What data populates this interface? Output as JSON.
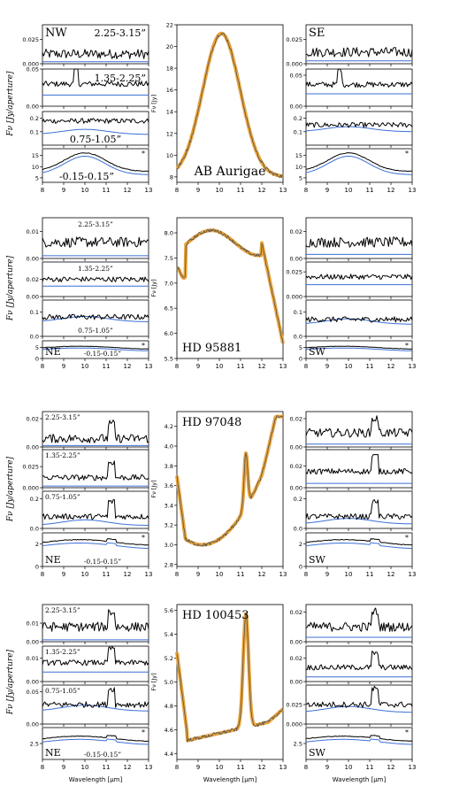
{
  "figure": {
    "xlabel": "Wavelength [μm]",
    "left_ylabel": "Fν [Jy/aperture]",
    "center_ylabel": "Fν [Jy]",
    "x_ticks": [
      "8",
      "9",
      "10",
      "11",
      "12",
      "13"
    ],
    "colors": {
      "data": "#000000",
      "model": "#3b6fd6",
      "fit": "#e8a33a",
      "fit_line": "#555555"
    }
  },
  "chart_data": [
    {
      "type": "line",
      "object": "AB Aurigae",
      "rows": [
        {
          "name": "row1",
          "left": {
            "label": "NW",
            "range": "2.25-3.15”",
            "ylim": [
              0,
              0.04
            ],
            "yticks": [
              "0.000",
              "0.025"
            ],
            "level": 0.01,
            "baseline": 0.002,
            "noise": 0.003
          },
          "center": {
            "label": "AB Aurigae",
            "ylim": [
              7.5,
              22
            ],
            "yticks": [
              "8",
              "10",
              "12",
              "14",
              "16",
              "18",
              "20",
              "22"
            ]
          },
          "right": {
            "label": "SE",
            "ylim": [
              0,
              0.04
            ],
            "yticks": [
              "0.000",
              "0.025"
            ],
            "level": 0.012,
            "baseline": 0.003,
            "noise": 0.003
          }
        },
        {
          "name": "row2",
          "left": {
            "range": "1.35-2.25”",
            "ylim": [
              0,
              0.05
            ],
            "yticks": [
              "0.00",
              "0.05"
            ],
            "level": 0.03,
            "baseline": 0.015
          },
          "right": {
            "ylim": [
              0,
              0.06
            ],
            "yticks": [
              "0.00",
              "0.05"
            ],
            "level": 0.035,
            "baseline": 0.02
          }
        },
        {
          "name": "row3",
          "left": {
            "range": "0.75-1.05”",
            "ylim": [
              0,
              0.25
            ],
            "yticks": [
              "0.1",
              "0.2"
            ],
            "level": 0.18,
            "baseline": 0.08
          },
          "right": {
            "ylim": [
              0,
              0.25
            ],
            "yticks": [
              "0.1",
              "0.2"
            ],
            "level": 0.15,
            "baseline": 0.1
          }
        },
        {
          "name": "row4",
          "left": {
            "range": "-0.15-0.15”",
            "ylim": [
              3,
              18
            ],
            "yticks": [
              "5",
              "10",
              "15"
            ],
            "level": 14,
            "baseline": 13,
            "star": "*"
          },
          "right": {
            "ylim": [
              3,
              18
            ],
            "yticks": [
              "5",
              "10",
              "15"
            ],
            "level": 14,
            "baseline": 13,
            "star": "*"
          }
        }
      ]
    },
    {
      "type": "line",
      "object": "HD 95881",
      "rows": [
        {
          "name": "row1",
          "left": {
            "range": "2.25-3.15”",
            "ylim": [
              0,
              0.015
            ],
            "yticks": [
              "0.00",
              "0.01"
            ],
            "level": 0.006,
            "baseline": 0.001
          },
          "center": {
            "label": "HD 95881",
            "ylim": [
              5.5,
              8.3
            ],
            "yticks": [
              "5.5",
              "6.0",
              "6.5",
              "7.0",
              "7.5",
              "8.0"
            ]
          },
          "right": {
            "ylim": [
              0,
              0.03
            ],
            "yticks": [
              "0.00",
              "0.02"
            ],
            "level": 0.012,
            "baseline": 0.003
          }
        },
        {
          "name": "row2",
          "left": {
            "range": "1.35-2.25”",
            "ylim": [
              0,
              0.04
            ],
            "yticks": [
              "0.00",
              "0.02"
            ],
            "level": 0.02,
            "baseline": 0.012
          },
          "right": {
            "ylim": [
              0,
              0.035
            ],
            "yticks": [
              "0.000",
              "0.025"
            ],
            "level": 0.02,
            "baseline": 0.012
          }
        },
        {
          "name": "row3",
          "left": {
            "range": "0.75-1.05”",
            "ylim": [
              0,
              0.15
            ],
            "yticks": [
              "0.0",
              "0.1"
            ],
            "level": 0.08,
            "baseline": 0.06
          },
          "right": {
            "ylim": [
              0,
              0.15
            ],
            "yticks": [
              "0.0",
              "0.1"
            ],
            "level": 0.07,
            "baseline": 0.05
          }
        },
        {
          "name": "row4",
          "left": {
            "label": "NE",
            "range": "-0.15-0.15”",
            "ylim": [
              0,
              8
            ],
            "yticks": [
              "0",
              "5"
            ],
            "level": 5,
            "baseline": 4.5,
            "star": "*"
          },
          "right": {
            "label": "SW",
            "ylim": [
              0,
              8
            ],
            "yticks": [
              "0",
              "5"
            ],
            "level": 5,
            "baseline": 4.5,
            "star": "*"
          }
        }
      ]
    },
    {
      "type": "line",
      "object": "HD 97048",
      "rows": [
        {
          "name": "row1",
          "left": {
            "range": "2.25-3.15”",
            "ylim": [
              0,
              0.025
            ],
            "yticks": [
              "0.00",
              "0.02"
            ],
            "level": 0.006,
            "baseline": 0.001
          },
          "center": {
            "label": "HD 97048",
            "ylim": [
              2.78,
              4.35
            ],
            "yticks": [
              "2.8",
              "3.0",
              "3.2",
              "3.4",
              "3.6",
              "3.8",
              "4.0",
              "4.2"
            ]
          },
          "right": {
            "ylim": [
              0,
              0.025
            ],
            "yticks": [
              "0.00",
              "0.02"
            ],
            "level": 0.01,
            "baseline": 0.002
          }
        },
        {
          "name": "row2",
          "left": {
            "range": "1.35-2.25”",
            "ylim": [
              0,
              0.045
            ],
            "yticks": [
              "0.000",
              "0.025"
            ],
            "level": 0.012,
            "baseline": 0.002
          },
          "right": {
            "ylim": [
              0,
              0.035
            ],
            "yticks": [
              "0.00",
              "0.02"
            ],
            "level": 0.015,
            "baseline": 0.004
          }
        },
        {
          "name": "row3",
          "left": {
            "range": "0.75-1.05”",
            "ylim": [
              0,
              0.25
            ],
            "yticks": [
              "0.0",
              "0.2"
            ],
            "level": 0.08,
            "baseline": 0.02
          },
          "right": {
            "ylim": [
              0,
              0.25
            ],
            "yticks": [
              "0.0",
              "0.2"
            ],
            "level": 0.08,
            "baseline": 0.03
          }
        },
        {
          "name": "row4",
          "left": {
            "label": "NE",
            "range": "-0.15-0.15”",
            "ylim": [
              0,
              3
            ],
            "yticks": [
              "0",
              "2"
            ],
            "level": 2.2,
            "baseline": 2.0,
            "star": "*"
          },
          "right": {
            "label": "SW",
            "ylim": [
              0,
              3
            ],
            "yticks": [
              "0",
              "2"
            ],
            "level": 2.2,
            "baseline": 2.0,
            "star": "*"
          }
        }
      ]
    },
    {
      "type": "line",
      "object": "HD 100453",
      "rows": [
        {
          "name": "row1",
          "left": {
            "range": "2.25-3.15”",
            "ylim": [
              0,
              0.02
            ],
            "yticks": [
              "0.00",
              "0.01"
            ],
            "level": 0.008,
            "baseline": 0.001
          },
          "center": {
            "label": "HD 100453",
            "ylim": [
              4.35,
              5.65
            ],
            "yticks": [
              "4.4",
              "4.6",
              "4.8",
              "5.0",
              "5.2",
              "5.4",
              "5.6"
            ]
          },
          "right": {
            "ylim": [
              0,
              0.025
            ],
            "yticks": [
              "0.00",
              "0.02"
            ],
            "level": 0.01,
            "baseline": 0.003
          }
        },
        {
          "name": "row2",
          "left": {
            "range": "1.35-2.25”",
            "ylim": [
              0,
              0.015
            ],
            "yticks": [
              "0.00",
              "0.01"
            ],
            "level": 0.008,
            "baseline": 0.004
          },
          "right": {
            "ylim": [
              0,
              0.03
            ],
            "yticks": [
              "0.00",
              "0.02"
            ],
            "level": 0.012,
            "baseline": 0.004
          }
        },
        {
          "name": "row3",
          "left": {
            "range": "0.75-1.05”",
            "ylim": [
              0,
              0.06
            ],
            "yticks": [
              "0.00",
              "0.05"
            ],
            "level": 0.03,
            "baseline": 0.02
          },
          "right": {
            "ylim": [
              0,
              0.05
            ],
            "yticks": [
              "0.000",
              "0.025"
            ],
            "level": 0.025,
            "baseline": 0.015
          }
        },
        {
          "name": "row4",
          "left": {
            "label": "NE",
            "range": "-0.15-0.15”",
            "ylim": [
              1,
              4
            ],
            "yticks": [
              "2.5"
            ],
            "level": 3.0,
            "baseline": 2.8,
            "star": "*"
          },
          "right": {
            "label": "SW",
            "ylim": [
              1,
              4
            ],
            "yticks": [
              "2.5"
            ],
            "level": 3.0,
            "baseline": 2.8,
            "star": "*"
          }
        }
      ]
    }
  ]
}
